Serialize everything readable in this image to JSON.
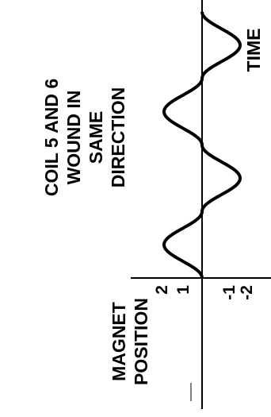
{
  "chart_data": {
    "type": "line",
    "title_lines": [
      "COIL 5 AND 6",
      "WOUND IN",
      "SAME",
      "DIRECTION"
    ],
    "ylabel_lines": [
      "MAGNET",
      "POSITION"
    ],
    "xlabel": "TIME",
    "yticks": [
      "2",
      "1",
      "-1",
      "-2"
    ],
    "ylim": [
      -2,
      2
    ],
    "grid": false,
    "rotation": "rotated 90 degrees counter-clockwise",
    "series": [
      {
        "x": [
          0,
          0.25,
          0.5,
          0.75,
          1,
          1.25,
          1.5,
          1.75,
          2
        ],
        "y": [
          0,
          1,
          0,
          -1,
          0,
          1,
          0,
          -1,
          0
        ]
      }
    ]
  }
}
